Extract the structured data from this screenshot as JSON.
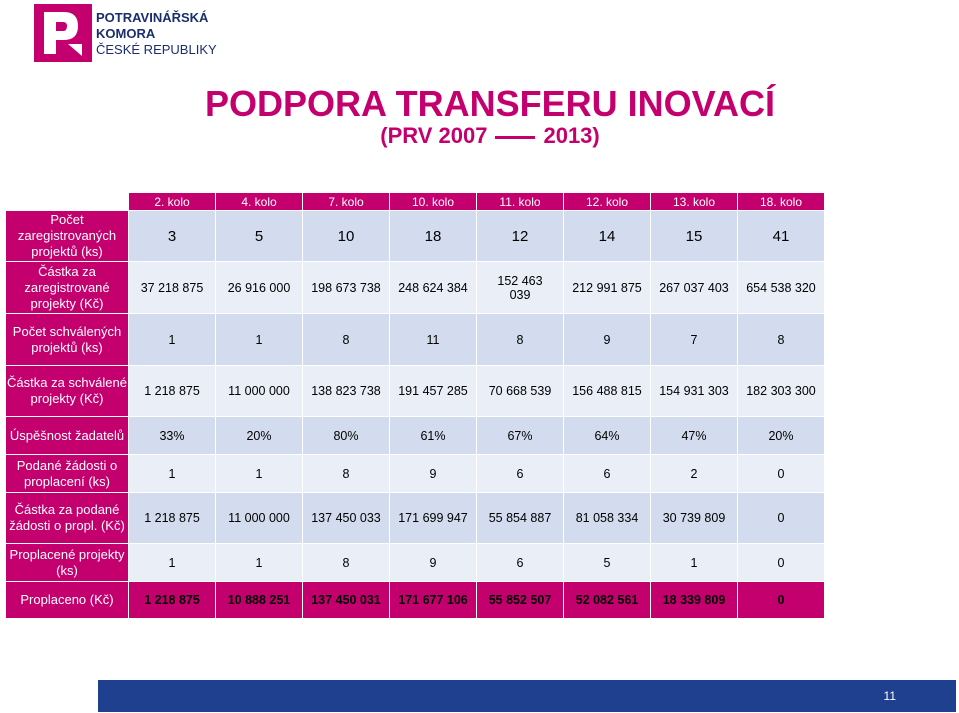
{
  "logo": {
    "line1": "POTRAVINÁŘSKÁ",
    "line2": "KOMORA",
    "line3": "ČESKÉ REPUBLIKY"
  },
  "title": "PODPORA TRANSFERU INOVACÍ",
  "subtitle_left": "(PRV 2007",
  "subtitle_right": "2013)",
  "table": {
    "columns": [
      "2. kolo",
      "4. kolo",
      "7. kolo",
      "10. kolo",
      "11. kolo",
      "12. kolo",
      "13. kolo",
      "18. kolo"
    ],
    "rows": [
      {
        "label": "Počet zaregistrovaných projektů (ks)",
        "values": [
          "3",
          "5",
          "10",
          "18",
          "12",
          "14",
          "15",
          "41"
        ]
      },
      {
        "label": "Částka za zaregistrované projekty (Kč)",
        "values": [
          "37 218 875",
          "26 916 000",
          "198 673 738",
          "248 624 384",
          "152 463 039",
          "212 991 875",
          "267 037 403",
          "654 538 320"
        ]
      },
      {
        "label": "Počet schválených projektů (ks)",
        "values": [
          "1",
          "1",
          "8",
          "11",
          "8",
          "9",
          "7",
          "8"
        ]
      },
      {
        "label": "Částka za schválené projekty (Kč)",
        "values": [
          "1 218 875",
          "11 000 000",
          "138 823 738",
          "191 457 285",
          "70 668 539",
          "156 488 815",
          "154 931 303",
          "182 303 300"
        ]
      },
      {
        "label": "Úspěšnost žadatelů",
        "values": [
          "33%",
          "20%",
          "80%",
          "61%",
          "67%",
          "64%",
          "47%",
          "20%"
        ]
      },
      {
        "label": "Podané žádosti o proplacení (ks)",
        "values": [
          "1",
          "1",
          "8",
          "9",
          "6",
          "6",
          "2",
          "0"
        ]
      },
      {
        "label": "Částka za podané žádosti o propl. (Kč)",
        "values": [
          "1 218 875",
          "11 000 000",
          "137 450 033",
          "171 699 947",
          "55 854 887",
          "81 058 334",
          "30 739 809",
          "0"
        ]
      },
      {
        "label": "Proplacené projekty (ks)",
        "values": [
          "1",
          "1",
          "8",
          "9",
          "6",
          "5",
          "1",
          "0"
        ]
      }
    ],
    "total": {
      "label": "Proplaceno (Kč)",
      "values": [
        "1 218 875",
        "10 888 251",
        "137 450 031",
        "171 677 106",
        "55 852 507",
        "52 082 561",
        "18 339 809",
        "0"
      ]
    }
  },
  "page_number": "11",
  "colors": {
    "accent": "#c4006f",
    "row_dark": "#d2dcee",
    "row_light": "#e9eef7",
    "footer": "#1f3f8f",
    "logo_text": "#1a2e6e"
  }
}
